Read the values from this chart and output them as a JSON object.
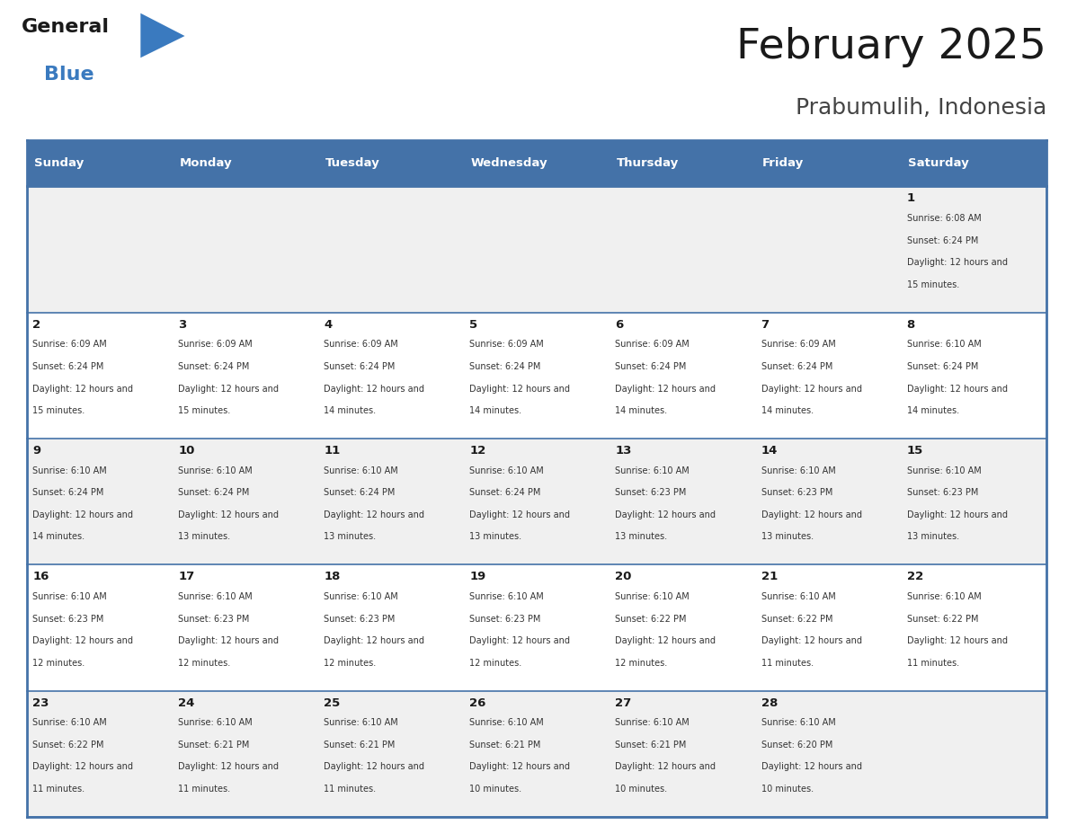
{
  "title": "February 2025",
  "subtitle": "Prabumulih, Indonesia",
  "header_bg": "#4472a8",
  "header_text_color": "#ffffff",
  "row_bg_odd": "#f0f0f0",
  "row_bg_even": "#ffffff",
  "border_color": "#4472a8",
  "day_headers": [
    "Sunday",
    "Monday",
    "Tuesday",
    "Wednesday",
    "Thursday",
    "Friday",
    "Saturday"
  ],
  "title_color": "#1a1a1a",
  "subtitle_color": "#444444",
  "cell_text_color": "#333333",
  "day_num_color": "#1a1a1a",
  "logo_general_color": "#1a1a1a",
  "logo_blue_color": "#3a7abf",
  "logo_triangle_color": "#3a7abf",
  "calendar_data": [
    [
      {
        "day": null,
        "sunrise": null,
        "sunset": null,
        "daylight": null
      },
      {
        "day": null,
        "sunrise": null,
        "sunset": null,
        "daylight": null
      },
      {
        "day": null,
        "sunrise": null,
        "sunset": null,
        "daylight": null
      },
      {
        "day": null,
        "sunrise": null,
        "sunset": null,
        "daylight": null
      },
      {
        "day": null,
        "sunrise": null,
        "sunset": null,
        "daylight": null
      },
      {
        "day": null,
        "sunrise": null,
        "sunset": null,
        "daylight": null
      },
      {
        "day": 1,
        "sunrise": "6:08 AM",
        "sunset": "6:24 PM",
        "daylight": "12 hours and 15 minutes."
      }
    ],
    [
      {
        "day": 2,
        "sunrise": "6:09 AM",
        "sunset": "6:24 PM",
        "daylight": "12 hours and 15 minutes."
      },
      {
        "day": 3,
        "sunrise": "6:09 AM",
        "sunset": "6:24 PM",
        "daylight": "12 hours and 15 minutes."
      },
      {
        "day": 4,
        "sunrise": "6:09 AM",
        "sunset": "6:24 PM",
        "daylight": "12 hours and 14 minutes."
      },
      {
        "day": 5,
        "sunrise": "6:09 AM",
        "sunset": "6:24 PM",
        "daylight": "12 hours and 14 minutes."
      },
      {
        "day": 6,
        "sunrise": "6:09 AM",
        "sunset": "6:24 PM",
        "daylight": "12 hours and 14 minutes."
      },
      {
        "day": 7,
        "sunrise": "6:09 AM",
        "sunset": "6:24 PM",
        "daylight": "12 hours and 14 minutes."
      },
      {
        "day": 8,
        "sunrise": "6:10 AM",
        "sunset": "6:24 PM",
        "daylight": "12 hours and 14 minutes."
      }
    ],
    [
      {
        "day": 9,
        "sunrise": "6:10 AM",
        "sunset": "6:24 PM",
        "daylight": "12 hours and 14 minutes."
      },
      {
        "day": 10,
        "sunrise": "6:10 AM",
        "sunset": "6:24 PM",
        "daylight": "12 hours and 13 minutes."
      },
      {
        "day": 11,
        "sunrise": "6:10 AM",
        "sunset": "6:24 PM",
        "daylight": "12 hours and 13 minutes."
      },
      {
        "day": 12,
        "sunrise": "6:10 AM",
        "sunset": "6:24 PM",
        "daylight": "12 hours and 13 minutes."
      },
      {
        "day": 13,
        "sunrise": "6:10 AM",
        "sunset": "6:23 PM",
        "daylight": "12 hours and 13 minutes."
      },
      {
        "day": 14,
        "sunrise": "6:10 AM",
        "sunset": "6:23 PM",
        "daylight": "12 hours and 13 minutes."
      },
      {
        "day": 15,
        "sunrise": "6:10 AM",
        "sunset": "6:23 PM",
        "daylight": "12 hours and 13 minutes."
      }
    ],
    [
      {
        "day": 16,
        "sunrise": "6:10 AM",
        "sunset": "6:23 PM",
        "daylight": "12 hours and 12 minutes."
      },
      {
        "day": 17,
        "sunrise": "6:10 AM",
        "sunset": "6:23 PM",
        "daylight": "12 hours and 12 minutes."
      },
      {
        "day": 18,
        "sunrise": "6:10 AM",
        "sunset": "6:23 PM",
        "daylight": "12 hours and 12 minutes."
      },
      {
        "day": 19,
        "sunrise": "6:10 AM",
        "sunset": "6:23 PM",
        "daylight": "12 hours and 12 minutes."
      },
      {
        "day": 20,
        "sunrise": "6:10 AM",
        "sunset": "6:22 PM",
        "daylight": "12 hours and 12 minutes."
      },
      {
        "day": 21,
        "sunrise": "6:10 AM",
        "sunset": "6:22 PM",
        "daylight": "12 hours and 11 minutes."
      },
      {
        "day": 22,
        "sunrise": "6:10 AM",
        "sunset": "6:22 PM",
        "daylight": "12 hours and 11 minutes."
      }
    ],
    [
      {
        "day": 23,
        "sunrise": "6:10 AM",
        "sunset": "6:22 PM",
        "daylight": "12 hours and 11 minutes."
      },
      {
        "day": 24,
        "sunrise": "6:10 AM",
        "sunset": "6:21 PM",
        "daylight": "12 hours and 11 minutes."
      },
      {
        "day": 25,
        "sunrise": "6:10 AM",
        "sunset": "6:21 PM",
        "daylight": "12 hours and 11 minutes."
      },
      {
        "day": 26,
        "sunrise": "6:10 AM",
        "sunset": "6:21 PM",
        "daylight": "12 hours and 10 minutes."
      },
      {
        "day": 27,
        "sunrise": "6:10 AM",
        "sunset": "6:21 PM",
        "daylight": "12 hours and 10 minutes."
      },
      {
        "day": 28,
        "sunrise": "6:10 AM",
        "sunset": "6:20 PM",
        "daylight": "12 hours and 10 minutes."
      },
      {
        "day": null,
        "sunrise": null,
        "sunset": null,
        "daylight": null
      }
    ]
  ]
}
